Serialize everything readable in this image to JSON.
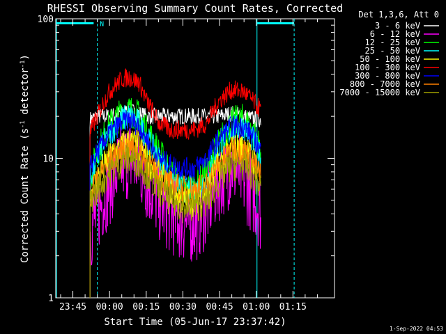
{
  "chart_data": {
    "type": "line",
    "title": "RHESSI Observing Summary Count Rates, Corrected",
    "xlabel": "Start Time (05-Jun-17 23:37:42)",
    "ylabel_main": "Corrected Count Rate (s",
    "ylabel_sup1": "-1",
    "ylabel_mid": " detector",
    "ylabel_sup2": "-1",
    "ylabel_end": ")",
    "yscale": "log",
    "ylim": [
      1,
      100
    ],
    "xlim_minutes": [
      -22,
      92
    ],
    "y_ticks": [
      {
        "value": 1,
        "label": "1"
      },
      {
        "value": 10,
        "label": "10"
      },
      {
        "value": 100,
        "label": "100"
      }
    ],
    "x_ticks": [
      {
        "minutes": -15,
        "label": "23:45"
      },
      {
        "minutes": 0,
        "label": "00:00"
      },
      {
        "minutes": 15,
        "label": "00:15"
      },
      {
        "minutes": 30,
        "label": "00:30"
      },
      {
        "minutes": 45,
        "label": "00:45"
      },
      {
        "minutes": 60,
        "label": "01:00"
      },
      {
        "minutes": 75,
        "label": "01:15"
      }
    ],
    "legend_header": "Det 1,3,6, Att 0",
    "legend_placement": "right",
    "series": [
      {
        "name": "3 - 6 keV",
        "color": "#ffffff",
        "x": [
          -8,
          -5,
          0,
          5,
          8,
          12,
          15,
          20,
          25,
          30,
          35,
          40,
          45,
          50,
          55,
          60,
          62
        ],
        "y": [
          19,
          20,
          20,
          21,
          22,
          21,
          20,
          20,
          20,
          20,
          20,
          20,
          20,
          21,
          20,
          19,
          19
        ]
      },
      {
        "name": "6 - 12 keV",
        "color": "#ff00ff",
        "x": [
          -8,
          -5,
          0,
          5,
          8,
          12,
          15,
          20,
          25,
          30,
          35,
          40,
          45,
          50,
          55,
          60,
          62
        ],
        "y": [
          3,
          4,
          6.5,
          9,
          10,
          9,
          7,
          5,
          4,
          3.5,
          3.5,
          4.5,
          7,
          9,
          7,
          5,
          4
        ]
      },
      {
        "name": "12 - 25 keV",
        "color": "#00ff00",
        "x": [
          -8,
          -5,
          0,
          5,
          8,
          12,
          15,
          20,
          25,
          30,
          35,
          40,
          45,
          50,
          55,
          60,
          62
        ],
        "y": [
          7,
          11,
          17,
          21,
          22,
          20,
          16,
          11,
          8,
          6,
          6,
          8,
          13,
          18,
          19,
          14,
          11
        ]
      },
      {
        "name": "25 - 50 keV",
        "color": "#00ffff",
        "x": [
          -8,
          -5,
          0,
          5,
          8,
          12,
          15,
          20,
          25,
          30,
          35,
          40,
          45,
          50,
          55,
          60,
          62
        ],
        "y": [
          7,
          10,
          15,
          19,
          20,
          18,
          14,
          10,
          7,
          6,
          6,
          7,
          12,
          16,
          17,
          12,
          10
        ]
      },
      {
        "name": "50 - 100 keV",
        "color": "#ffff00",
        "x": [
          -8,
          -5,
          0,
          5,
          8,
          12,
          15,
          20,
          25,
          30,
          35,
          40,
          45,
          50,
          55,
          60,
          62
        ],
        "y": [
          5.5,
          7,
          10,
          12,
          13,
          12,
          10,
          7.5,
          6,
          5,
          5,
          6,
          9,
          11.5,
          12,
          9,
          7
        ]
      },
      {
        "name": "100 - 300 keV",
        "color": "#ff0000",
        "x": [
          -8,
          -5,
          0,
          5,
          8,
          12,
          15,
          20,
          25,
          30,
          35,
          40,
          45,
          50,
          55,
          60,
          62
        ],
        "y": [
          15,
          20,
          30,
          37,
          38,
          35,
          26,
          18,
          16,
          16,
          16,
          18,
          26,
          31,
          30,
          24,
          22
        ]
      },
      {
        "name": "300 - 800 keV",
        "color": "#0000ff",
        "x": [
          -8,
          -5,
          0,
          5,
          8,
          12,
          15,
          20,
          25,
          30,
          35,
          40,
          45,
          50,
          55,
          60,
          62
        ],
        "y": [
          8.5,
          11,
          15,
          18,
          19,
          17,
          14,
          10,
          9,
          8.5,
          8.5,
          10,
          14,
          17,
          17,
          13,
          11
        ]
      },
      {
        "name": "800 - 7000 keV",
        "color": "#ff8000",
        "x": [
          -8,
          -5,
          0,
          5,
          8,
          12,
          15,
          20,
          25,
          30,
          35,
          40,
          45,
          50,
          55,
          60,
          62
        ],
        "y": [
          5.5,
          7,
          9.5,
          11.5,
          12,
          11,
          9.5,
          7.5,
          6.5,
          6,
          6,
          6.5,
          9,
          11.5,
          11.5,
          8.5,
          7.5
        ]
      },
      {
        "name": "7000 - 15000 keV",
        "color": "#a0a000",
        "x": [
          -8,
          -5,
          0,
          5,
          8,
          12,
          15,
          20,
          25,
          30,
          35,
          40,
          45,
          50,
          55,
          60,
          62
        ],
        "y": [
          5,
          6,
          8,
          9.5,
          10,
          9.5,
          8,
          6,
          5,
          4.5,
          4.5,
          5,
          7,
          9,
          9,
          7,
          6
        ]
      }
    ],
    "orbit_markers": {
      "color": "#00ffff",
      "solid_lines_minutes": [
        -21.7,
        60.3
      ],
      "dashed_lines_minutes": [
        -5,
        75.5
      ],
      "bars": [
        {
          "from": -21.7,
          "to": -6.5,
          "value": 93
        },
        {
          "from": 60.3,
          "to": 75.5,
          "value": 93
        }
      ],
      "label": "N",
      "label_at_minutes": -4
    }
  },
  "footer_date": "1-Sep-2022 04:53"
}
